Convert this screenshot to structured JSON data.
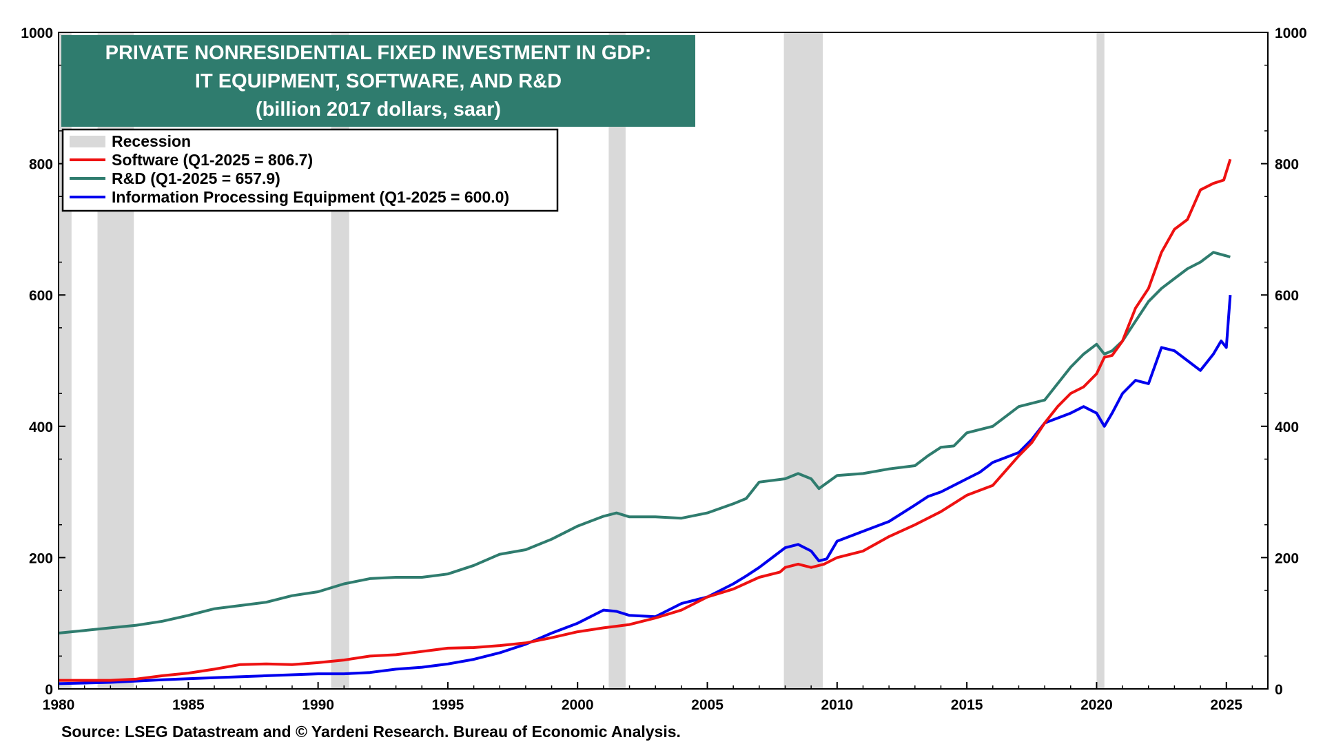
{
  "chart_data": {
    "type": "line",
    "title": [
      "PRIVATE NONRESIDENTIAL FIXED INVESTMENT IN GDP:",
      "IT EQUIPMENT, SOFTWARE, AND R&D",
      "(billion 2017 dollars, saar)"
    ],
    "source": "Source: LSEG Datastream and © Yardeni Research. Bureau of Economic Analysis.",
    "xlim": [
      1980,
      2026.6
    ],
    "ylim": [
      0,
      1000
    ],
    "x_ticks": [
      "1980",
      "1985",
      "1990",
      "1995",
      "2000",
      "2005",
      "2010",
      "2015",
      "2020",
      "2025"
    ],
    "y_ticks": [
      "0",
      "200",
      "400",
      "600",
      "800",
      "1000"
    ],
    "y_ticks_right": [
      "0",
      "200",
      "400",
      "600",
      "800",
      "1000"
    ],
    "grid": false,
    "legend_position": "top-left",
    "legend": {
      "recession_label": "Recession",
      "recession_color": "#d9d9d9"
    },
    "recessions": [
      [
        1980.0,
        1980.5
      ],
      [
        1981.5,
        1982.9
      ],
      [
        1990.5,
        1991.2
      ],
      [
        2001.2,
        2001.85
      ],
      [
        2007.95,
        2009.45
      ],
      [
        2020.0,
        2020.3
      ]
    ],
    "series": [
      {
        "name": "Software (Q1-2025 = 806.7)",
        "color": "#ee1111",
        "points": [
          [
            1980,
            13
          ],
          [
            1982,
            13
          ],
          [
            1983,
            15
          ],
          [
            1984,
            20
          ],
          [
            1985,
            24
          ],
          [
            1986,
            30
          ],
          [
            1987,
            37
          ],
          [
            1988,
            38
          ],
          [
            1989,
            37
          ],
          [
            1990,
            40
          ],
          [
            1991,
            44
          ],
          [
            1992,
            50
          ],
          [
            1993,
            52
          ],
          [
            1994,
            57
          ],
          [
            1995,
            62
          ],
          [
            1996,
            63
          ],
          [
            1997,
            66
          ],
          [
            1998,
            70
          ],
          [
            1999,
            78
          ],
          [
            2000,
            87
          ],
          [
            2001,
            93
          ],
          [
            2002,
            98
          ],
          [
            2003,
            108
          ],
          [
            2004,
            120
          ],
          [
            2005,
            140
          ],
          [
            2006,
            152
          ],
          [
            2007,
            170
          ],
          [
            2007.8,
            178
          ],
          [
            2008,
            185
          ],
          [
            2008.5,
            190
          ],
          [
            2009,
            185
          ],
          [
            2009.5,
            190
          ],
          [
            2010,
            200
          ],
          [
            2011,
            210
          ],
          [
            2012,
            232
          ],
          [
            2013,
            250
          ],
          [
            2014,
            270
          ],
          [
            2015,
            295
          ],
          [
            2016,
            310
          ],
          [
            2017,
            355
          ],
          [
            2017.5,
            375
          ],
          [
            2018,
            405
          ],
          [
            2018.5,
            430
          ],
          [
            2019,
            450
          ],
          [
            2019.5,
            460
          ],
          [
            2020,
            480
          ],
          [
            2020.3,
            505
          ],
          [
            2020.6,
            508
          ],
          [
            2021,
            530
          ],
          [
            2021.5,
            580
          ],
          [
            2022,
            610
          ],
          [
            2022.5,
            665
          ],
          [
            2023,
            700
          ],
          [
            2023.5,
            715
          ],
          [
            2024,
            760
          ],
          [
            2024.5,
            770
          ],
          [
            2024.9,
            775
          ],
          [
            2025.15,
            806.7
          ]
        ]
      },
      {
        "name": "R&D  (Q1-2025 = 657.9)",
        "color": "#2f7c6e",
        "points": [
          [
            1980,
            85
          ],
          [
            1981,
            89
          ],
          [
            1982,
            93
          ],
          [
            1983,
            97
          ],
          [
            1984,
            103
          ],
          [
            1985,
            112
          ],
          [
            1986,
            122
          ],
          [
            1987,
            127
          ],
          [
            1988,
            132
          ],
          [
            1989,
            142
          ],
          [
            1990,
            148
          ],
          [
            1991,
            160
          ],
          [
            1992,
            168
          ],
          [
            1993,
            170
          ],
          [
            1994,
            170
          ],
          [
            1995,
            175
          ],
          [
            1996,
            188
          ],
          [
            1997,
            205
          ],
          [
            1998,
            212
          ],
          [
            1999,
            228
          ],
          [
            2000,
            248
          ],
          [
            2001,
            263
          ],
          [
            2001.5,
            268
          ],
          [
            2002,
            262
          ],
          [
            2003,
            262
          ],
          [
            2004,
            260
          ],
          [
            2005,
            268
          ],
          [
            2006,
            282
          ],
          [
            2006.5,
            290
          ],
          [
            2007,
            315
          ],
          [
            2008,
            320
          ],
          [
            2008.5,
            328
          ],
          [
            2009,
            320
          ],
          [
            2009.3,
            305
          ],
          [
            2010,
            325
          ],
          [
            2011,
            328
          ],
          [
            2012,
            335
          ],
          [
            2013,
            340
          ],
          [
            2013.5,
            355
          ],
          [
            2014,
            368
          ],
          [
            2014.5,
            370
          ],
          [
            2015,
            390
          ],
          [
            2016,
            400
          ],
          [
            2017,
            430
          ],
          [
            2018,
            440
          ],
          [
            2019,
            490
          ],
          [
            2019.5,
            510
          ],
          [
            2020,
            525
          ],
          [
            2020.3,
            510
          ],
          [
            2020.6,
            515
          ],
          [
            2021,
            530
          ],
          [
            2021.5,
            560
          ],
          [
            2022,
            590
          ],
          [
            2022.5,
            610
          ],
          [
            2023,
            625
          ],
          [
            2023.5,
            640
          ],
          [
            2024,
            650
          ],
          [
            2024.5,
            665
          ],
          [
            2025.15,
            657.9
          ]
        ]
      },
      {
        "name": "Information Processing Equipment (Q1-2025 = 600.0)",
        "color": "#0000ee",
        "points": [
          [
            1980,
            8
          ],
          [
            1982,
            10
          ],
          [
            1984,
            14
          ],
          [
            1986,
            17
          ],
          [
            1988,
            20
          ],
          [
            1990,
            23
          ],
          [
            1991,
            23
          ],
          [
            1992,
            25
          ],
          [
            1993,
            30
          ],
          [
            1994,
            33
          ],
          [
            1995,
            38
          ],
          [
            1996,
            45
          ],
          [
            1997,
            55
          ],
          [
            1998,
            68
          ],
          [
            1999,
            85
          ],
          [
            2000,
            100
          ],
          [
            2000.5,
            110
          ],
          [
            2001,
            120
          ],
          [
            2001.5,
            118
          ],
          [
            2002,
            112
          ],
          [
            2003,
            110
          ],
          [
            2004,
            130
          ],
          [
            2005,
            140
          ],
          [
            2006,
            160
          ],
          [
            2006.5,
            172
          ],
          [
            2007,
            185
          ],
          [
            2007.5,
            200
          ],
          [
            2008,
            215
          ],
          [
            2008.5,
            220
          ],
          [
            2009,
            210
          ],
          [
            2009.3,
            195
          ],
          [
            2009.6,
            198
          ],
          [
            2010,
            225
          ],
          [
            2011,
            240
          ],
          [
            2012,
            255
          ],
          [
            2013,
            280
          ],
          [
            2013.5,
            293
          ],
          [
            2014,
            300
          ],
          [
            2015,
            320
          ],
          [
            2015.5,
            330
          ],
          [
            2016,
            345
          ],
          [
            2017,
            360
          ],
          [
            2017.5,
            380
          ],
          [
            2018,
            405
          ],
          [
            2019,
            420
          ],
          [
            2019.5,
            430
          ],
          [
            2020,
            420
          ],
          [
            2020.3,
            400
          ],
          [
            2020.6,
            420
          ],
          [
            2021,
            450
          ],
          [
            2021.5,
            470
          ],
          [
            2022,
            465
          ],
          [
            2022.5,
            520
          ],
          [
            2023,
            515
          ],
          [
            2023.5,
            500
          ],
          [
            2024,
            485
          ],
          [
            2024.5,
            510
          ],
          [
            2024.8,
            530
          ],
          [
            2025,
            520
          ],
          [
            2025.15,
            600
          ]
        ]
      }
    ]
  }
}
